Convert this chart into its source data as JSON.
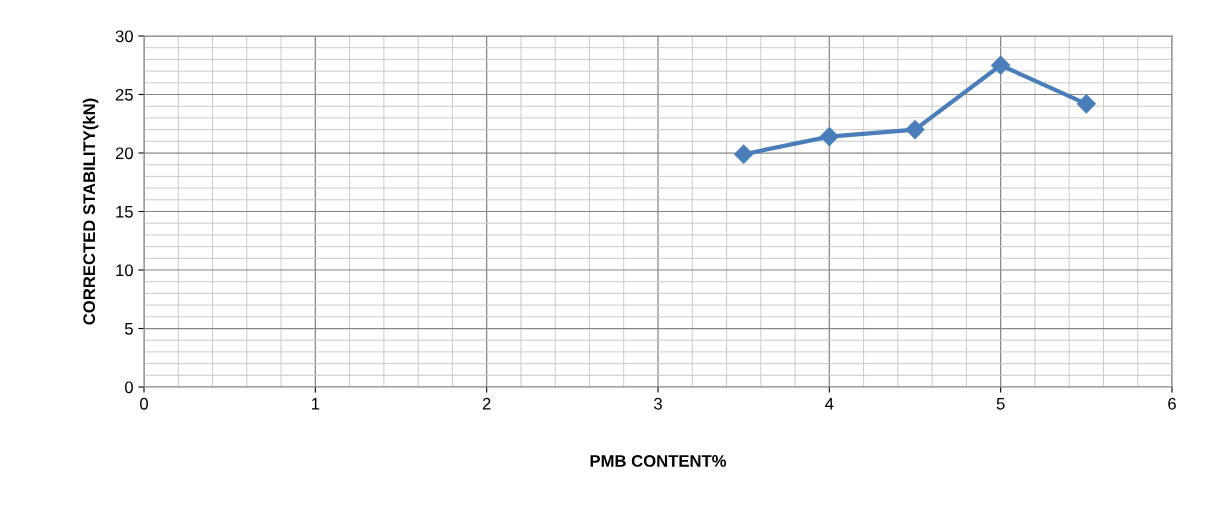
{
  "chart_data": {
    "type": "line",
    "xlabel": "PMB CONTENT%",
    "ylabel": "CORRECTED STABILITY(kN)",
    "x": [
      3.5,
      4,
      4.5,
      5,
      5.5
    ],
    "series": [
      {
        "color": "#4a7ebb",
        "values": [
          19.9,
          21.4,
          22.0,
          27.5,
          24.2
        ]
      }
    ],
    "xlim": [
      0,
      6
    ],
    "xticks": [
      0,
      1,
      2,
      3,
      4,
      5,
      6
    ],
    "ylim": [
      0,
      30
    ],
    "yticks": [
      0,
      5,
      10,
      15,
      20,
      25,
      30
    ],
    "grid": true,
    "marker": "diamond",
    "line_style": "solid"
  }
}
